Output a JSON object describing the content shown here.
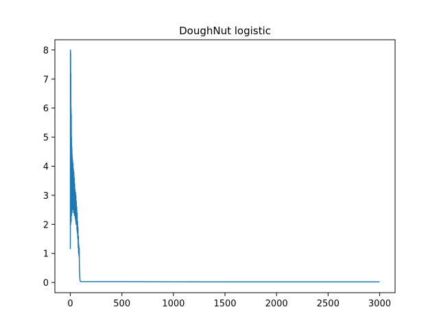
{
  "chart_data": {
    "type": "line",
    "title": "DoughNut logistic",
    "xlabel": "",
    "ylabel": "",
    "xlim": [
      -150,
      3150
    ],
    "ylim": [
      -0.35,
      8.35
    ],
    "xticks": [
      0,
      500,
      1000,
      1500,
      2000,
      2500,
      3000
    ],
    "yticks": [
      0,
      1,
      2,
      3,
      4,
      5,
      6,
      7,
      8
    ],
    "grid": false,
    "legend": "none",
    "series": [
      {
        "color": "#1f77b4",
        "x": [
          0,
          1,
          2,
          3,
          4,
          5,
          6,
          7,
          8,
          9,
          10,
          11,
          12,
          13,
          14,
          15,
          16,
          17,
          18,
          19,
          20,
          22,
          24,
          26,
          28,
          30,
          32,
          34,
          36,
          38,
          40,
          42,
          44,
          46,
          48,
          50,
          52,
          54,
          56,
          58,
          60,
          62,
          64,
          66,
          68,
          70,
          72,
          74,
          76,
          78,
          80,
          82,
          84,
          86,
          88,
          90,
          92,
          94,
          96,
          98,
          100,
          105,
          110,
          150,
          300,
          500,
          1000,
          1500,
          2000,
          2500,
          3000
        ],
        "y": [
          1.15,
          8.0,
          2.4,
          7.9,
          2.0,
          7.2,
          2.3,
          6.0,
          2.1,
          5.8,
          2.5,
          5.0,
          2.3,
          4.7,
          2.6,
          4.6,
          2.4,
          4.4,
          2.7,
          4.3,
          2.5,
          4.2,
          2.6,
          4.1,
          2.5,
          3.9,
          2.4,
          3.8,
          2.4,
          3.6,
          2.3,
          3.4,
          2.3,
          3.2,
          2.2,
          3.1,
          2.1,
          3.0,
          2.0,
          2.8,
          2.0,
          2.6,
          1.8,
          2.4,
          1.7,
          2.1,
          1.5,
          1.9,
          1.2,
          1.6,
          1.0,
          1.3,
          0.9,
          1.2,
          0.5,
          0.3,
          0.15,
          0.08,
          0.05,
          0.04,
          0.03,
          0.03,
          0.03,
          0.03,
          0.03,
          0.03,
          0.025,
          0.02,
          0.02,
          0.02,
          0.02
        ]
      }
    ]
  }
}
